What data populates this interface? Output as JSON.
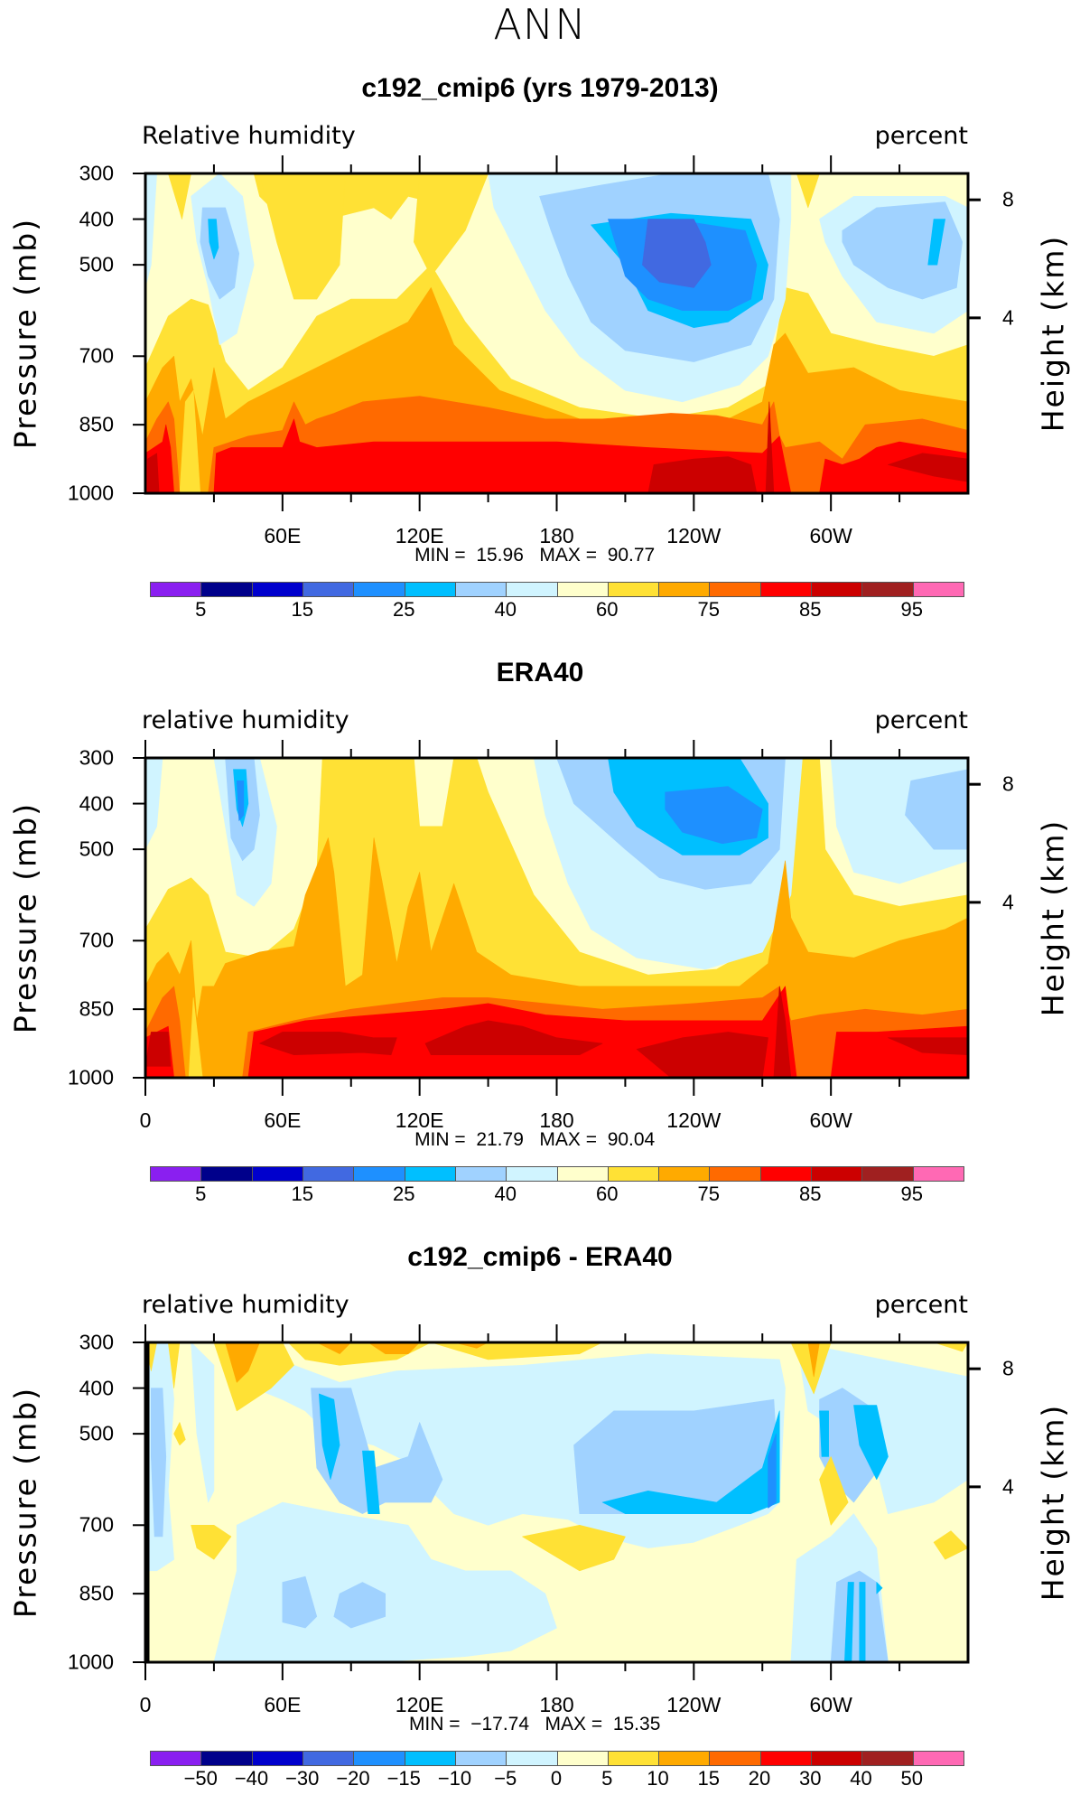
{
  "title": "ANN",
  "colorbar_colors": [
    "#8a1ff0",
    "#00008b",
    "#0000cd",
    "#4169e1",
    "#1e90ff",
    "#00bfff",
    "#a0d2ff",
    "#d0f4ff",
    "#ffffcc",
    "#ffe135",
    "#ffaa00",
    "#ff6a00",
    "#ff0000",
    "#cc0000",
    "#a02020",
    "#ff69b4"
  ],
  "chart_data": [
    {
      "type": "heatmap",
      "subtype": "filled contour (longitude-pressure cross-section)",
      "title": "c192_cmip6 (yrs 1979-2013)",
      "left_string": "Relative humidity",
      "right_string": "percent",
      "ylabel": "Pressure (mb)",
      "ylabel_right": "Height (km)",
      "xlim": [
        0,
        360
      ],
      "ylim": [
        1000,
        300
      ],
      "x_ticklabels": [
        "60E",
        "120E",
        "180",
        "120W",
        "60W"
      ],
      "y_ticklabels": [
        "300",
        "400",
        "500",
        "700",
        "850",
        "1000"
      ],
      "y_right_ticklabels": [
        "8",
        "4"
      ],
      "min_label": "MIN =",
      "min": "15.96",
      "max_label": "MAX =",
      "max": "90.77",
      "colorbar_labels": [
        "5",
        "15",
        "25",
        "40",
        "60",
        "75",
        "85",
        "95"
      ],
      "grid": false
    },
    {
      "type": "heatmap",
      "subtype": "filled contour (longitude-pressure cross-section)",
      "title": "ERA40",
      "left_string": "relative humidity",
      "right_string": "percent",
      "ylabel": "Pressure (mb)",
      "ylabel_right": "Height (km)",
      "xlim": [
        0,
        360
      ],
      "ylim": [
        1000,
        300
      ],
      "x_ticklabels": [
        "0",
        "60E",
        "120E",
        "180",
        "120W",
        "60W"
      ],
      "y_ticklabels": [
        "300",
        "400",
        "500",
        "700",
        "850",
        "1000"
      ],
      "y_right_ticklabels": [
        "8",
        "4"
      ],
      "min_label": "MIN =",
      "min": "21.79",
      "max_label": "MAX =",
      "max": "90.04",
      "colorbar_labels": [
        "5",
        "15",
        "25",
        "40",
        "60",
        "75",
        "85",
        "95"
      ],
      "grid": false
    },
    {
      "type": "heatmap",
      "subtype": "filled contour (difference)",
      "title": "c192_cmip6 - ERA40",
      "left_string": "relative humidity",
      "right_string": "percent",
      "ylabel": "Pressure (mb)",
      "ylabel_right": "Height (km)",
      "xlim": [
        0,
        360
      ],
      "ylim": [
        1000,
        300
      ],
      "x_ticklabels": [
        "0",
        "60E",
        "120E",
        "180",
        "120W",
        "60W"
      ],
      "y_ticklabels": [
        "300",
        "400",
        "500",
        "700",
        "850",
        "1000"
      ],
      "y_right_ticklabels": [
        "8",
        "4"
      ],
      "min_label": "MIN =",
      "min": "−17.74",
      "max_label": "MAX =",
      "max": "15.35",
      "colorbar_labels": [
        "−50",
        "−40",
        "−30",
        "−20",
        "−15",
        "−10",
        "−5",
        "0",
        "5",
        "10",
        "15",
        "20",
        "30",
        "40",
        "50"
      ],
      "grid": false
    }
  ]
}
